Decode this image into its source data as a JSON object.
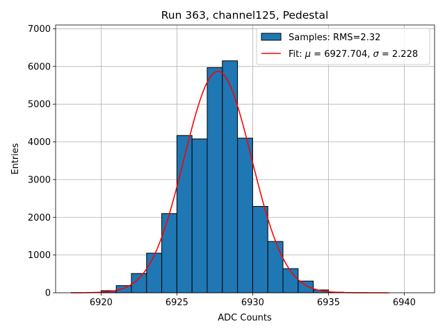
{
  "chart_data": {
    "type": "bar",
    "title": "Run 363, channel125, Pedestal",
    "xlabel": "ADC Counts",
    "ylabel": "Entries",
    "xlim": [
      6917,
      6942
    ],
    "ylim": [
      0,
      7100
    ],
    "xticks": [
      "6920",
      "6925",
      "6930",
      "6935",
      "6940"
    ],
    "xtick_values": [
      6920,
      6925,
      6930,
      6935,
      6940
    ],
    "yticks": [
      "0",
      "1000",
      "2000",
      "3000",
      "4000",
      "5000",
      "6000",
      "7000"
    ],
    "ytick_values": [
      0,
      1000,
      2000,
      3000,
      4000,
      5000,
      6000,
      7000
    ],
    "grid": true,
    "legend_position": "top-right",
    "bar_color": "#1f77b4",
    "fit_color": "#ff0000",
    "histogram": {
      "name": "Samples: RMS=2.32",
      "bins": [
        {
          "start": 6920,
          "end": 6921,
          "count": 55
        },
        {
          "start": 6921,
          "end": 6922,
          "count": 190
        },
        {
          "start": 6922,
          "end": 6923,
          "count": 510
        },
        {
          "start": 6923,
          "end": 6924,
          "count": 1050
        },
        {
          "start": 6924,
          "end": 6925,
          "count": 2100
        },
        {
          "start": 6925,
          "end": 6926,
          "count": 4170
        },
        {
          "start": 6926,
          "end": 6927,
          "count": 4080
        },
        {
          "start": 6927,
          "end": 6928,
          "count": 5970
        },
        {
          "start": 6928,
          "end": 6929,
          "count": 6150
        },
        {
          "start": 6929,
          "end": 6930,
          "count": 4100
        },
        {
          "start": 6930,
          "end": 6931,
          "count": 2290
        },
        {
          "start": 6931,
          "end": 6932,
          "count": 1360
        },
        {
          "start": 6932,
          "end": 6933,
          "count": 640
        },
        {
          "start": 6933,
          "end": 6934,
          "count": 310
        },
        {
          "start": 6934,
          "end": 6935,
          "count": 75
        },
        {
          "start": 6935,
          "end": 6936,
          "count": 15
        }
      ]
    },
    "fit": {
      "name": "Fit: μ = 6927.704, σ = 2.228",
      "name_parts": [
        "Fit: ",
        "μ",
        " = 6927.704, ",
        "σ",
        " = 2.228"
      ],
      "mu": 6927.704,
      "sigma": 2.228,
      "amplitude": 5870,
      "x_range": [
        6918,
        6939
      ]
    }
  }
}
